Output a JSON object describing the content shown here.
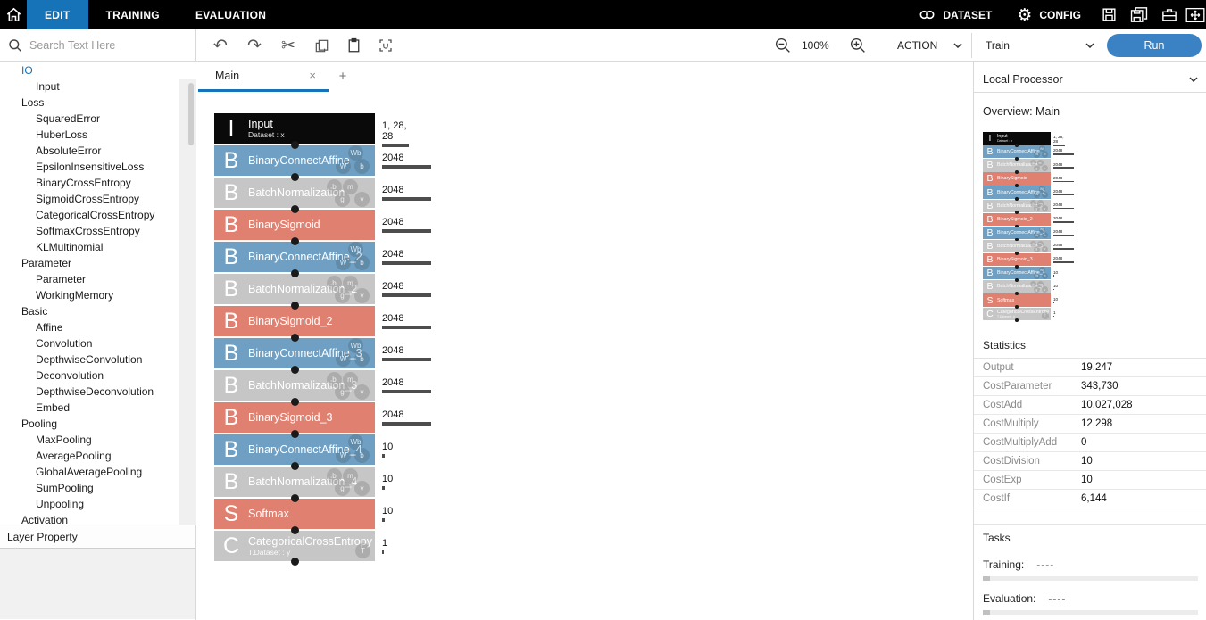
{
  "app": {
    "top_tabs": [
      {
        "label": "EDIT",
        "active": true
      },
      {
        "label": "TRAINING",
        "active": false
      },
      {
        "label": "EVALUATION",
        "active": false
      }
    ],
    "menus": {
      "dataset": "DATASET",
      "config": "CONFIG"
    }
  },
  "toolbar": {
    "search_placeholder": "Search Text Here",
    "zoom_level": "100%",
    "action_label": "ACTION",
    "run_mode": "Train",
    "run_label": "Run"
  },
  "sidebar": {
    "groups": [
      {
        "label": "IO",
        "selected": true,
        "items": [
          "Input"
        ]
      },
      {
        "label": "Loss",
        "selected": false,
        "items": [
          "SquaredError",
          "HuberLoss",
          "AbsoluteError",
          "EpsilonInsensitiveLoss",
          "BinaryCrossEntropy",
          "SigmoidCrossEntropy",
          "CategoricalCrossEntropy",
          "SoftmaxCrossEntropy",
          "KLMultinomial"
        ]
      },
      {
        "label": "Parameter",
        "selected": false,
        "items": [
          "Parameter",
          "WorkingMemory"
        ]
      },
      {
        "label": "Basic",
        "selected": false,
        "items": [
          "Affine",
          "Convolution",
          "DepthwiseConvolution",
          "Deconvolution",
          "DepthwiseDeconvolution",
          "Embed"
        ]
      },
      {
        "label": "Pooling",
        "selected": false,
        "items": [
          "MaxPooling",
          "AveragePooling",
          "GlobalAveragePooling",
          "SumPooling",
          "Unpooling"
        ]
      },
      {
        "label": "Activation",
        "selected": false,
        "items": []
      }
    ],
    "footer": "Layer Property"
  },
  "canvas": {
    "tab": "Main",
    "close_glyph": "×",
    "add_tab_glyph": "+",
    "network": {
      "nodes": [
        {
          "letter": "I",
          "title": "Input",
          "subtitle": "Dataset : x",
          "color": "black",
          "badges": [],
          "size": "1, 28, 28",
          "bar": 30
        },
        {
          "letter": "B",
          "title": "BinaryConnectAffine",
          "subtitle": "",
          "color": "blue",
          "badges": [
            "Wb",
            "W",
            "b"
          ],
          "size": "2048",
          "bar": 55
        },
        {
          "letter": "B",
          "title": "BatchNormalization",
          "subtitle": "",
          "color": "gray",
          "badges": [
            "b",
            "m",
            "g",
            "v"
          ],
          "size": "2048",
          "bar": 55
        },
        {
          "letter": "B",
          "title": "BinarySigmoid",
          "subtitle": "",
          "color": "salmon",
          "badges": [],
          "size": "2048",
          "bar": 55
        },
        {
          "letter": "B",
          "title": "BinaryConnectAffine_2",
          "subtitle": "",
          "color": "blue",
          "badges": [
            "Wb",
            "W",
            "b"
          ],
          "size": "2048",
          "bar": 55
        },
        {
          "letter": "B",
          "title": "BatchNormalization_2",
          "subtitle": "",
          "color": "gray",
          "badges": [
            "b",
            "m",
            "g",
            "v"
          ],
          "size": "2048",
          "bar": 55
        },
        {
          "letter": "B",
          "title": "BinarySigmoid_2",
          "subtitle": "",
          "color": "salmon",
          "badges": [],
          "size": "2048",
          "bar": 55
        },
        {
          "letter": "B",
          "title": "BinaryConnectAffine_3",
          "subtitle": "",
          "color": "blue",
          "badges": [
            "Wb",
            "W",
            "b"
          ],
          "size": "2048",
          "bar": 55
        },
        {
          "letter": "B",
          "title": "BatchNormalization_3",
          "subtitle": "",
          "color": "gray",
          "badges": [
            "b",
            "m",
            "g",
            "v"
          ],
          "size": "2048",
          "bar": 55
        },
        {
          "letter": "B",
          "title": "BinarySigmoid_3",
          "subtitle": "",
          "color": "salmon",
          "badges": [],
          "size": "2048",
          "bar": 55
        },
        {
          "letter": "B",
          "title": "BinaryConnectAffine_4",
          "subtitle": "",
          "color": "blue",
          "badges": [
            "Wb",
            "W",
            "b"
          ],
          "size": "10",
          "bar": 3
        },
        {
          "letter": "B",
          "title": "BatchNormalization_4",
          "subtitle": "",
          "color": "gray",
          "badges": [
            "b",
            "m",
            "g",
            "v"
          ],
          "size": "10",
          "bar": 3
        },
        {
          "letter": "S",
          "title": "Softmax",
          "subtitle": "",
          "color": "salmon",
          "badges": [],
          "size": "10",
          "bar": 3
        },
        {
          "letter": "C",
          "title": "CategoricalCrossEntropy",
          "subtitle": "T.Dataset : y",
          "color": "gray",
          "badges": [
            "T"
          ],
          "size": "1",
          "bar": 2
        }
      ]
    }
  },
  "right_panel": {
    "processor": "Local Processor",
    "overview_title": "Overview: Main",
    "statistics": {
      "title": "Statistics",
      "rows": [
        {
          "label": "Output",
          "value": "19,247"
        },
        {
          "label": "CostParameter",
          "value": "343,730"
        },
        {
          "label": "CostAdd",
          "value": "10,027,028"
        },
        {
          "label": "CostMultiply",
          "value": "12,298"
        },
        {
          "label": "CostMultiplyAdd",
          "value": "0"
        },
        {
          "label": "CostDivision",
          "value": "10"
        },
        {
          "label": "CostExp",
          "value": "10"
        },
        {
          "label": "CostIf",
          "value": "6,144"
        }
      ]
    },
    "tasks": {
      "title": "Tasks",
      "training_label": "Training:",
      "training_value": "----",
      "evaluation_label": "Evaluation:",
      "evaluation_value": "----"
    }
  },
  "colors": {
    "accent": "#1673b8",
    "run_button": "#3b82c4",
    "node_black": "#0a0a0a",
    "node_blue": "#6fa0c3",
    "node_gray": "#c6c6c6",
    "node_salmon": "#e08070",
    "size_bar": "#4d4d4d"
  }
}
